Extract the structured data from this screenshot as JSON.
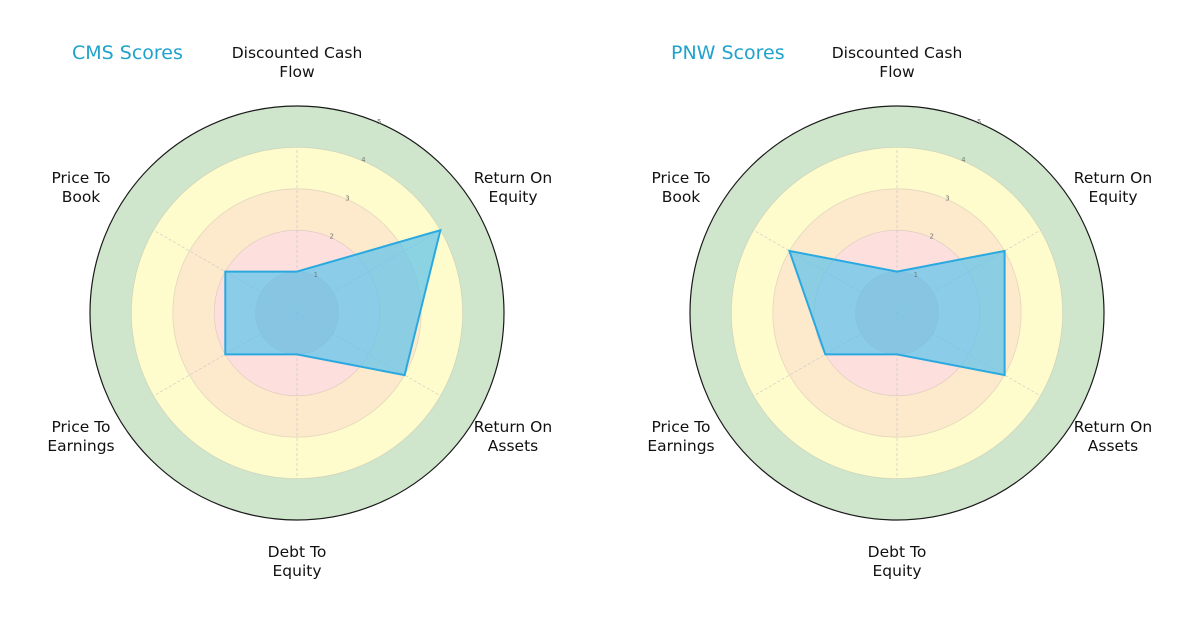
{
  "chart_data": [
    {
      "type": "radar",
      "title": "CMS Scores",
      "categories": [
        "Discounted Cash Flow",
        "Return On Equity",
        "Return On Assets",
        "Debt To Equity",
        "Price To Earnings",
        "Price To Book"
      ],
      "values": [
        1,
        4,
        3,
        1,
        2,
        2
      ],
      "rlim": [
        0,
        5
      ],
      "rticks": [
        1,
        2,
        3,
        4,
        5
      ],
      "grid": true
    },
    {
      "type": "radar",
      "title": "PNW Scores",
      "categories": [
        "Discounted Cash Flow",
        "Return On Equity",
        "Return On Assets",
        "Debt To Equity",
        "Price To Earnings",
        "Price To Book"
      ],
      "values": [
        1,
        3,
        3,
        1,
        2,
        3
      ],
      "rlim": [
        0,
        5
      ],
      "rticks": [
        1,
        2,
        3,
        4,
        5
      ],
      "grid": true
    }
  ],
  "panels": [
    {
      "title": "CMS Scores",
      "labels": {
        "dcf": "Discounted Cash\nFlow",
        "roe": "Return On\nEquity",
        "roa": "Return On\nAssets",
        "dte": "Debt To\nEquity",
        "pte": "Price To\nEarnings",
        "ptb": "Price To\nBook"
      }
    },
    {
      "title": "PNW Scores",
      "labels": {
        "dcf": "Discounted Cash\nFlow",
        "roe": "Return On\nEquity",
        "roa": "Return On\nAssets",
        "dte": "Debt To\nEquity",
        "pte": "Price To\nEarnings",
        "ptb": "Price To\nBook"
      }
    }
  ],
  "colors": {
    "title": "#1fa3cc",
    "band_0_1": "#f3c9c9",
    "band_1_2": "#fde0de",
    "band_2_3": "#fde9cc",
    "band_3_4": "#fefccc",
    "band_4_5": "#cfe6cc",
    "polygon_stroke": "#29a9e0",
    "polygon_fill": "#5ec3ec"
  }
}
